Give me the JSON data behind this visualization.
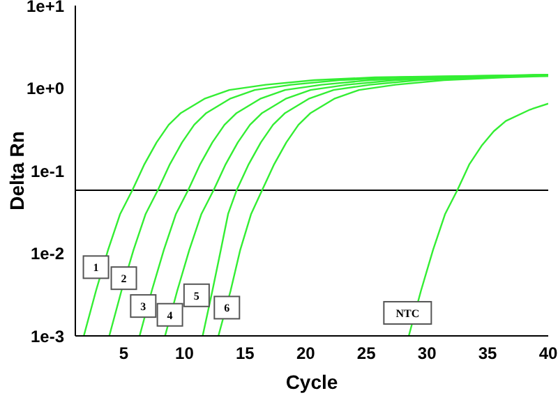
{
  "chart_data": {
    "type": "line",
    "xlabel": "Cycle",
    "ylabel": "Delta Rn",
    "log": "y",
    "xlim": [
      1,
      40
    ],
    "xticks": [
      5,
      10,
      15,
      20,
      25,
      30,
      35,
      40
    ],
    "ylim": [
      0.001,
      10
    ],
    "yticks": [
      {
        "value": 0.001,
        "label": "1e-3"
      },
      {
        "value": 0.01,
        "label": "1e-2"
      },
      {
        "value": 0.1,
        "label": "1e-1"
      },
      {
        "value": 1,
        "label": "1e+0"
      },
      {
        "value": 10,
        "label": "1e+1"
      }
    ],
    "grid": false,
    "legend": false,
    "marker": "none",
    "line_style": "solid",
    "series": [
      {
        "color": "#33ee33",
        "x": [
          1.7,
          2.7,
          3.7,
          4.7,
          5.7,
          6.7,
          7.7,
          8.7,
          9.7,
          11.7,
          13.7,
          16.7,
          20.7,
          25.7,
          40
        ],
        "values": [
          0.001,
          0.0035,
          0.011,
          0.03,
          0.058,
          0.12,
          0.22,
          0.36,
          0.5,
          0.75,
          0.95,
          1.1,
          1.25,
          1.35,
          1.45
        ]
      },
      {
        "color": "#33ee33",
        "x": [
          3.8,
          4.8,
          5.8,
          6.8,
          7.8,
          8.8,
          9.8,
          10.8,
          11.8,
          13.8,
          15.8,
          18.8,
          22.8,
          27.8,
          40
        ],
        "values": [
          0.001,
          0.0035,
          0.011,
          0.03,
          0.058,
          0.12,
          0.22,
          0.36,
          0.5,
          0.75,
          0.95,
          1.1,
          1.25,
          1.35,
          1.45
        ]
      },
      {
        "color": "#33ee33",
        "x": [
          6.3,
          7.3,
          8.3,
          9.3,
          10.3,
          11.3,
          12.3,
          13.3,
          14.3,
          16.3,
          18.3,
          21.3,
          25.3,
          30.3,
          40
        ],
        "values": [
          0.001,
          0.0035,
          0.011,
          0.03,
          0.058,
          0.12,
          0.22,
          0.36,
          0.5,
          0.75,
          0.95,
          1.1,
          1.25,
          1.35,
          1.45
        ]
      },
      {
        "color": "#33ee33",
        "x": [
          8.4,
          9.4,
          10.4,
          11.4,
          12.4,
          13.4,
          14.4,
          15.4,
          16.4,
          18.4,
          20.4,
          23.4,
          27.4,
          32.4,
          40
        ],
        "values": [
          0.001,
          0.0035,
          0.011,
          0.03,
          0.058,
          0.12,
          0.22,
          0.36,
          0.5,
          0.75,
          0.95,
          1.1,
          1.25,
          1.35,
          1.45
        ]
      },
      {
        "color": "#33ee33",
        "x": [
          11.5,
          12.3,
          13.0,
          13.6,
          14.3,
          15.3,
          16.3,
          17.3,
          18.3,
          20.3,
          22.3,
          25.3,
          29.3,
          34.3,
          40
        ],
        "values": [
          0.001,
          0.0035,
          0.011,
          0.03,
          0.058,
          0.12,
          0.22,
          0.36,
          0.5,
          0.75,
          0.95,
          1.1,
          1.25,
          1.35,
          1.42
        ]
      },
      {
        "color": "#33ee33",
        "x": [
          12.8,
          13.8,
          14.6,
          15.5,
          16.4,
          17.4,
          18.4,
          19.4,
          20.4,
          22.4,
          24.4,
          27.4,
          31.4,
          36.4,
          40
        ],
        "values": [
          0.001,
          0.0035,
          0.011,
          0.03,
          0.058,
          0.12,
          0.22,
          0.36,
          0.5,
          0.75,
          0.95,
          1.1,
          1.25,
          1.35,
          1.4
        ]
      },
      {
        "color": "#33ee33",
        "x": [
          28.5,
          29.5,
          30.5,
          31.5,
          32.5,
          33.5,
          34.5,
          35.5,
          36.5,
          38.5,
          40
        ],
        "values": [
          0.001,
          0.0035,
          0.011,
          0.03,
          0.058,
          0.12,
          0.2,
          0.3,
          0.4,
          0.55,
          0.65
        ]
      }
    ],
    "ref_lines": [
      {
        "axis": "y",
        "value": 0.058,
        "color": "#000000"
      }
    ],
    "annotations": [
      {
        "text": "1",
        "x": 2.7,
        "y": 0.0068
      },
      {
        "text": "2",
        "x": 5.0,
        "y": 0.005
      },
      {
        "text": "3",
        "x": 6.6,
        "y": 0.0023
      },
      {
        "text": "4",
        "x": 8.8,
        "y": 0.0018
      },
      {
        "text": "5",
        "x": 11.0,
        "y": 0.0031
      },
      {
        "text": "6",
        "x": 13.5,
        "y": 0.0022
      },
      {
        "text": "NTC",
        "x": 28.4,
        "y": 0.0019
      }
    ]
  }
}
